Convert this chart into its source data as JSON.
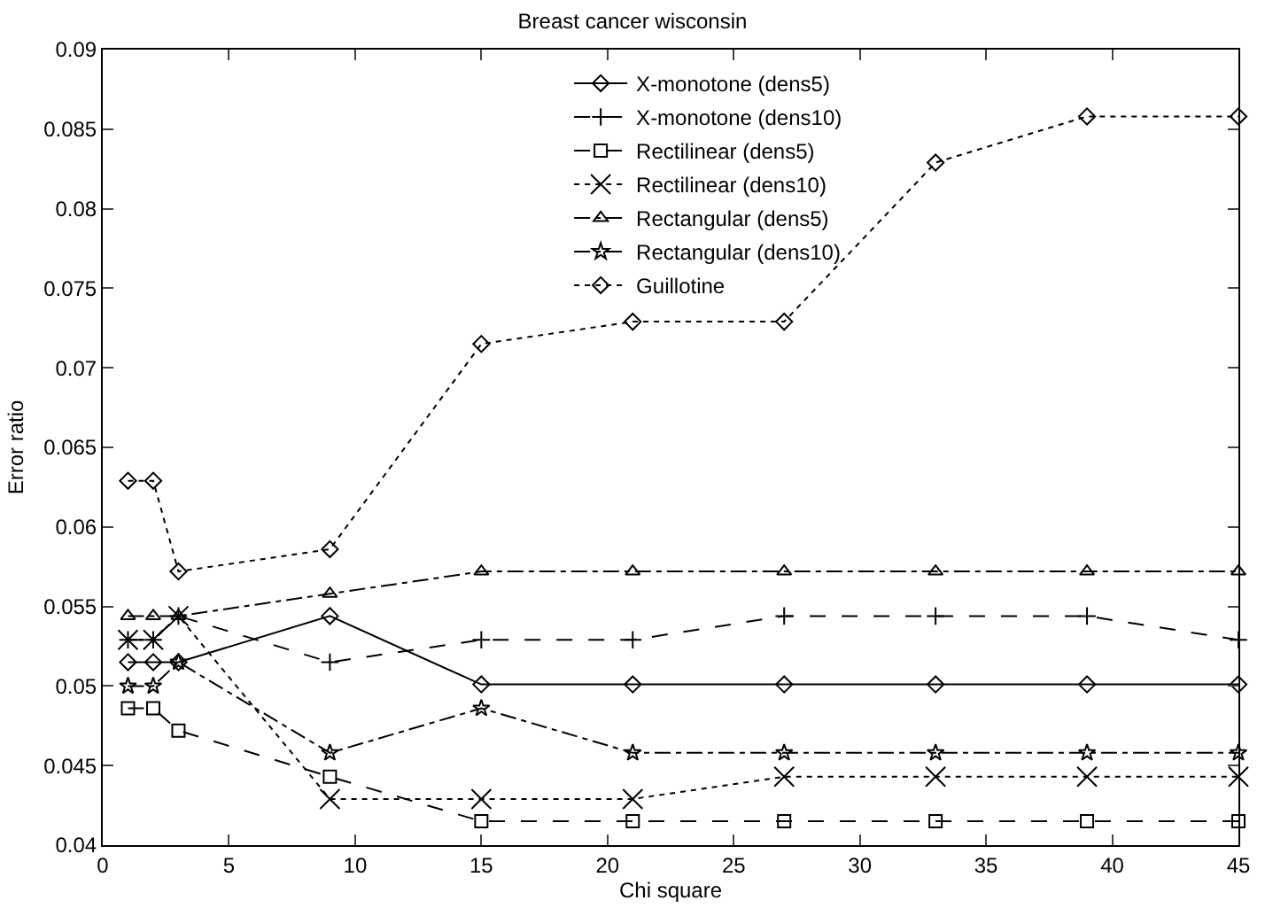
{
  "chart_data": {
    "type": "line",
    "title": "Breast cancer wisconsin",
    "xlabel": "Chi square",
    "ylabel": "Error ratio",
    "x": [
      1,
      2,
      3,
      9,
      15,
      21,
      27,
      33,
      39,
      45
    ],
    "series": [
      {
        "name": "X-monotone (dens5)",
        "color": "#000000",
        "marker": "diamond",
        "line_style": "solid",
        "values": [
          0.0515,
          0.0515,
          0.0515,
          0.0544,
          0.0501,
          0.0501,
          0.0501,
          0.0501,
          0.0501,
          0.0501
        ]
      },
      {
        "name": "X-monotone (dens10)",
        "color": "#000000",
        "marker": "cross",
        "line_style": "dashed",
        "values": [
          0.0529,
          0.0529,
          0.0544,
          0.0515,
          0.0529,
          0.0529,
          0.0544,
          0.0544,
          0.0544,
          0.0529
        ]
      },
      {
        "name": "Rectilinear (dens5)",
        "color": "#000000",
        "marker": "square",
        "line_style": "dashed",
        "values": [
          0.0486,
          0.0486,
          0.0472,
          0.0443,
          0.0415,
          0.0415,
          0.0415,
          0.0415,
          0.0415,
          0.0415
        ]
      },
      {
        "name": "Rectilinear (dens10)",
        "color": "#000000",
        "marker": "x",
        "line_style": "dotted",
        "values": [
          0.0529,
          0.0529,
          0.0544,
          0.0429,
          0.0429,
          0.0429,
          0.0443,
          0.0443,
          0.0443,
          0.0443
        ]
      },
      {
        "name": "Rectangular (dens5)",
        "color": "#000000",
        "marker": "triangle",
        "line_style": "dashdot",
        "values": [
          0.0544,
          0.0544,
          0.0544,
          0.0558,
          0.0572,
          0.0572,
          0.0572,
          0.0572,
          0.0572,
          0.0572
        ]
      },
      {
        "name": "Rectangular (dens10)",
        "color": "#000000",
        "marker": "star",
        "line_style": "dashdot",
        "values": [
          0.05,
          0.05,
          0.0515,
          0.0458,
          0.0486,
          0.0458,
          0.0458,
          0.0458,
          0.0458,
          0.0458
        ]
      },
      {
        "name": "Guillotine",
        "color": "#000000",
        "marker": "diamond",
        "line_style": "dotted",
        "values": [
          0.0629,
          0.0629,
          0.0572,
          0.0586,
          0.0715,
          0.0729,
          0.0729,
          0.0829,
          0.0858,
          0.0858
        ]
      }
    ],
    "xlim": [
      0,
      45
    ],
    "xticks": [
      0,
      5,
      10,
      15,
      20,
      25,
      30,
      35,
      40,
      45
    ],
    "ylim": [
      0.04,
      0.09
    ],
    "yticks": [
      0.04,
      0.045,
      0.05,
      0.055,
      0.06,
      0.065,
      0.07,
      0.075,
      0.08,
      0.085,
      0.09
    ],
    "grid": false,
    "legend": "top right"
  }
}
